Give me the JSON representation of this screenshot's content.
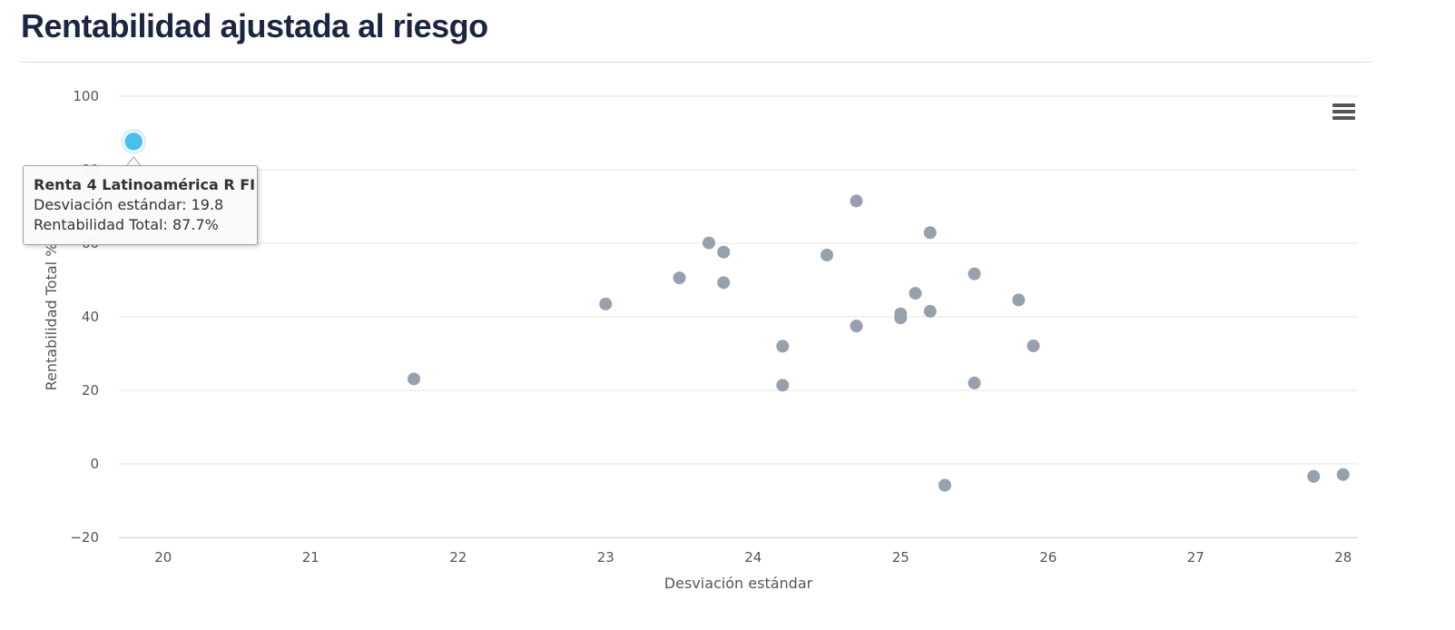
{
  "page": {
    "title": "Rentabilidad ajustada al riesgo",
    "menu_icon": "hamburger-menu-icon"
  },
  "colors": {
    "title": "#1b2640",
    "point": "#97a1ab",
    "highlight": "#4bbee9",
    "grid": "#e6e6e6",
    "axis": "#ccd6eb"
  },
  "tooltip": {
    "title": "Renta 4 Latinoamérica R FI",
    "line1": "Desviación estándar: 19.8",
    "line2": "Rentabilidad Total: 87.7%"
  },
  "chart_data": {
    "type": "scatter",
    "xlabel": "Desviación estándar",
    "ylabel": "Rentabilidad Total %",
    "xlim": [
      19.7,
      28.1
    ],
    "ylim": [
      -20,
      100
    ],
    "xticks": [
      20,
      21,
      22,
      23,
      24,
      25,
      26,
      27,
      28
    ],
    "yticks": [
      -20,
      0,
      20,
      40,
      60,
      80,
      100
    ],
    "ytick_labels": [
      "−20",
      "0",
      "20",
      "40",
      "60",
      "80",
      "100"
    ],
    "grid": true,
    "highlighted_point": {
      "x": 19.8,
      "y": 87.7,
      "name": "Renta 4 Latinoamérica R FI"
    },
    "points": [
      {
        "x": 21.7,
        "y": 23.1
      },
      {
        "x": 23.0,
        "y": 43.5
      },
      {
        "x": 23.5,
        "y": 50.6
      },
      {
        "x": 23.7,
        "y": 60.1
      },
      {
        "x": 23.8,
        "y": 57.6
      },
      {
        "x": 23.8,
        "y": 49.3
      },
      {
        "x": 24.2,
        "y": 32.0
      },
      {
        "x": 24.2,
        "y": 21.4
      },
      {
        "x": 24.5,
        "y": 56.8
      },
      {
        "x": 24.7,
        "y": 71.5
      },
      {
        "x": 24.7,
        "y": 37.5
      },
      {
        "x": 25.0,
        "y": 40.8
      },
      {
        "x": 25.0,
        "y": 39.7
      },
      {
        "x": 25.1,
        "y": 46.4
      },
      {
        "x": 25.2,
        "y": 62.9
      },
      {
        "x": 25.2,
        "y": 41.5
      },
      {
        "x": 25.3,
        "y": -5.8
      },
      {
        "x": 25.5,
        "y": 51.7
      },
      {
        "x": 25.5,
        "y": 22.0
      },
      {
        "x": 25.8,
        "y": 44.6
      },
      {
        "x": 25.9,
        "y": 32.1
      },
      {
        "x": 27.8,
        "y": -3.4
      },
      {
        "x": 28.0,
        "y": -2.9
      }
    ]
  }
}
